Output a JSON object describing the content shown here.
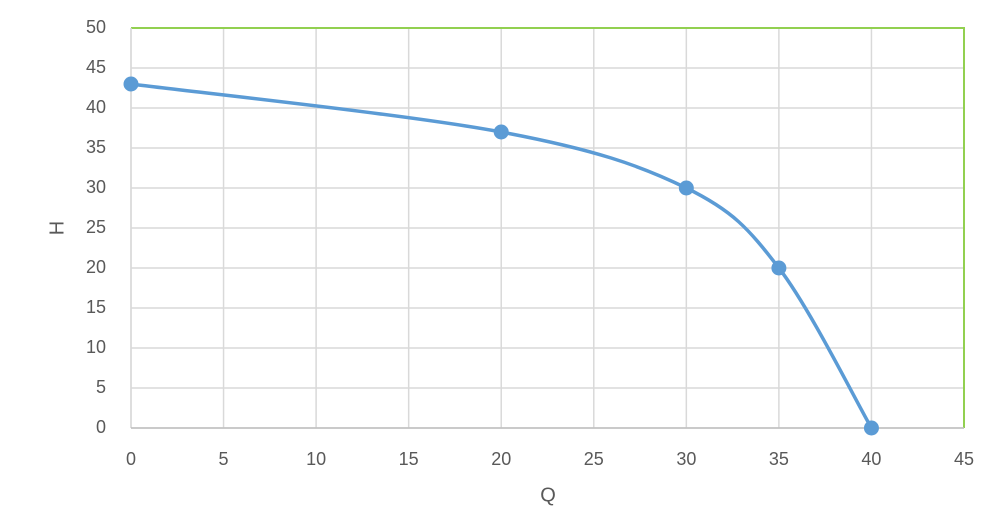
{
  "chart_data": {
    "type": "scatter-smooth",
    "x_label": "Q",
    "y_label": "H",
    "x": [
      0,
      20,
      30,
      35,
      40
    ],
    "values": [
      43,
      37,
      30,
      20,
      0
    ],
    "color": "#5b9bd5",
    "xlim": [
      0,
      45
    ],
    "xticks": [
      0,
      5,
      10,
      15,
      20,
      25,
      30,
      35,
      40,
      45
    ],
    "ylim": [
      0,
      50
    ],
    "yticks": [
      0,
      5,
      10,
      15,
      20,
      25,
      30,
      35,
      40,
      45,
      50
    ],
    "grid": true
  }
}
